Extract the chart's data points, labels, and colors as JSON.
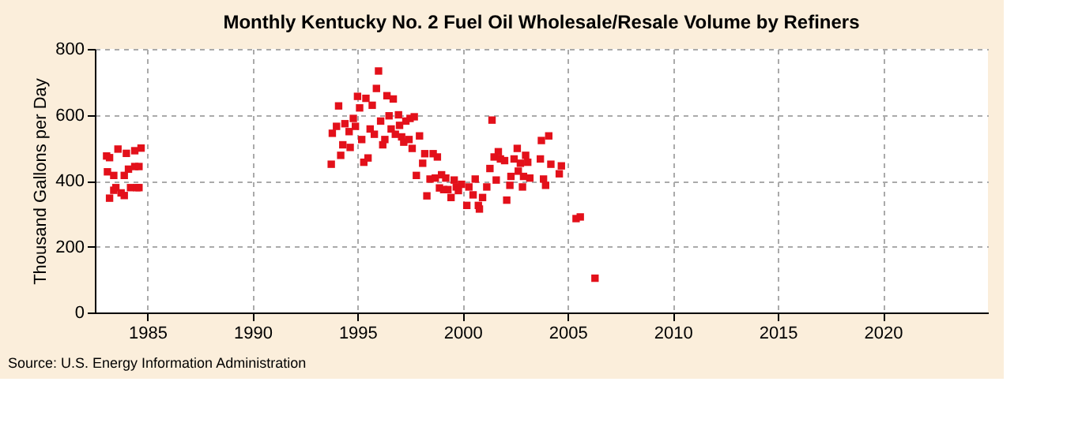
{
  "chart_data": {
    "type": "scatter",
    "title": "Monthly Kentucky No. 2 Fuel Oil Wholesale/Resale Volume by Refiners",
    "ylabel": "Thousand Gallons per Day",
    "annotations": [
      "Source: U.S. Energy Information Administration"
    ],
    "series": [
      {
        "color": "#e3101a",
        "marker": "square",
        "x": [
          1983.06,
          1983.2,
          1983.6,
          1984.0,
          1984.4,
          1984.7,
          1983.1,
          1983.4,
          1983.9,
          1984.1,
          1984.4,
          1984.6,
          1983.2,
          1983.4,
          1983.5,
          1983.75,
          1983.9,
          1984.2,
          1984.5,
          1984.6,
          1993.75,
          1993.8,
          1994.1,
          1994.0,
          1994.2,
          1994.3,
          1994.4,
          1994.6,
          1994.65,
          1994.8,
          1994.9,
          1995.0,
          1995.1,
          1995.2,
          1995.3,
          1995.4,
          1995.5,
          1995.6,
          1995.7,
          1995.8,
          1995.9,
          1996.0,
          1996.1,
          1996.2,
          1996.3,
          1996.4,
          1996.5,
          1996.6,
          1996.7,
          1996.8,
          1996.95,
          1997.0,
          1997.1,
          1997.2,
          1997.3,
          1997.45,
          1997.5,
          1997.6,
          1997.7,
          1997.8,
          1997.95,
          1998.1,
          1998.2,
          1998.3,
          1998.45,
          1998.6,
          1998.7,
          1998.8,
          1998.9,
          1999.0,
          1999.1,
          1999.2,
          1999.3,
          1999.45,
          1999.6,
          1999.7,
          1999.8,
          1999.95,
          2000.2,
          2000.3,
          2000.5,
          2000.6,
          2000.75,
          2000.8,
          2000.95,
          2001.15,
          2001.3,
          2001.4,
          2001.5,
          2001.6,
          2001.7,
          2001.8,
          2002.0,
          2002.1,
          2002.25,
          2002.3,
          2002.45,
          2002.6,
          2002.65,
          2002.75,
          2002.85,
          2002.9,
          2003.0,
          2003.1,
          2003.2,
          2003.7,
          2003.75,
          2003.85,
          2003.95,
          2004.1,
          2004.2,
          2004.6,
          2004.7,
          2005.4,
          2005.6,
          2006.3
        ],
        "values": [
          475,
          470,
          496,
          483,
          491,
          499,
          427,
          416,
          416,
          435,
          443,
          443,
          347,
          371,
          379,
          363,
          355,
          379,
          379,
          379,
          450,
          544,
          627,
          565,
          477,
          509,
          573,
          549,
          501,
          589,
          565,
          656,
          621,
          525,
          456,
          650,
          469,
          557,
          629,
          541,
          680,
          733,
          581,
          509,
          525,
          658,
          597,
          557,
          648,
          541,
          600,
          568,
          533,
          517,
          581,
          525,
          589,
          498,
          594,
          416,
          536,
          453,
          482,
          354,
          405,
          482,
          408,
          472,
          378,
          418,
          373,
          408,
          373,
          349,
          402,
          381,
          370,
          389,
          325,
          381,
          357,
          405,
          325,
          314,
          349,
          381,
          437,
          584,
          472,
          402,
          488,
          466,
          461,
          341,
          386,
          413,
          466,
          498,
          429,
          453,
          381,
          413,
          477,
          456,
          408,
          466,
          522,
          405,
          386,
          536,
          450,
          421,
          445,
          285,
          290,
          104
        ]
      }
    ],
    "xlim": [
      1982.5,
      2025
    ],
    "xticks": [
      1985,
      1990,
      1995,
      2000,
      2005,
      2010,
      2015,
      2020
    ],
    "ylim": [
      0,
      800
    ],
    "yticks": [
      0,
      200,
      400,
      600,
      800
    ],
    "grid": true
  }
}
